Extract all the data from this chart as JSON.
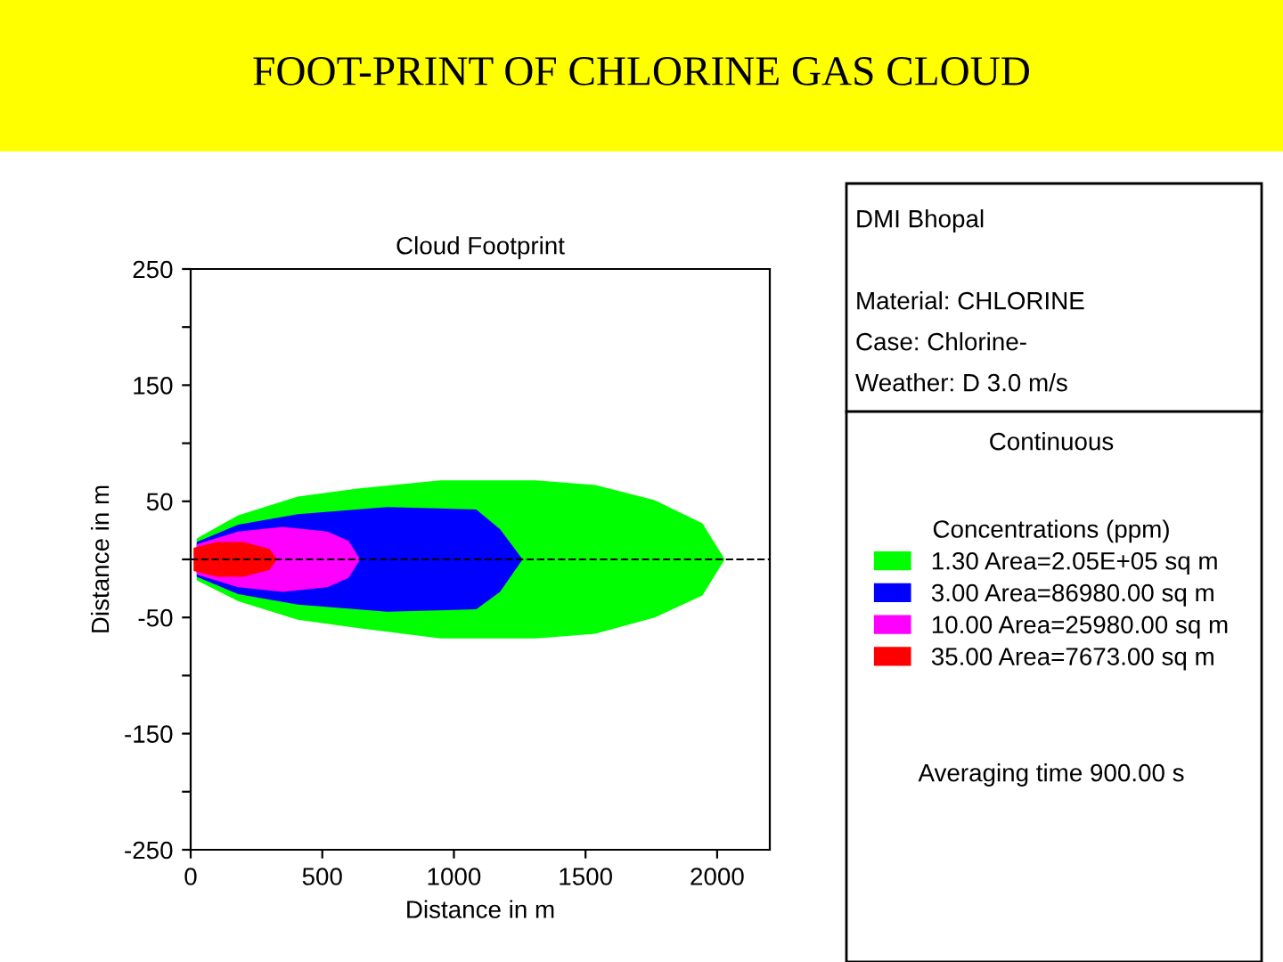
{
  "chart_data": {
    "type": "area",
    "title": "FOOT-PRINT OF CHLORINE GAS CLOUD",
    "subtitle": "Cloud Footprint",
    "xlabel": "Distance in m",
    "ylabel": "Distance in m",
    "legend_title": "Concentrations (ppm)",
    "annotations": [
      "DMI Bhopal",
      "Material: CHLORINE",
      "Case: Chlorine-",
      "Weather: D 3.0 m/s",
      "Continuous",
      "Averaging time 900.00 s"
    ],
    "series": [
      {
        "name": "1.30 Area=2.05E+05 sq m",
        "color": "#00ff00",
        "x": [
          23,
          181,
          407,
          633,
          949,
          1311,
          1537,
          1763,
          1944,
          2029
        ],
        "values": [
          18,
          38,
          54,
          61,
          68,
          68,
          64,
          51,
          31,
          0
        ]
      },
      {
        "color": "#00ff00",
        "x": [
          23,
          181,
          407,
          633,
          949,
          1311,
          1537,
          1763,
          1944,
          2029
        ],
        "values": [
          -18,
          -36,
          -52,
          -59,
          -68,
          -68,
          -64,
          -50,
          -31,
          0
        ]
      },
      {
        "name": "3.00 Area=86980.00 sq m",
        "color": "#0000ff",
        "x": [
          23,
          181,
          407,
          746,
          1085,
          1175,
          1261
        ],
        "values": [
          15,
          30,
          39,
          45,
          43,
          26,
          0
        ]
      },
      {
        "color": "#0000ff",
        "x": [
          23,
          181,
          407,
          746,
          1085,
          1175,
          1261
        ],
        "values": [
          -15,
          -30,
          -39,
          -45,
          -43,
          -28,
          0
        ]
      },
      {
        "name": "10.00 Area=25980.00 sq m",
        "color": "#ff00ff",
        "x": [
          23,
          181,
          350,
          520,
          600,
          644
        ],
        "values": [
          13,
          24,
          28,
          24,
          16,
          0
        ]
      },
      {
        "color": "#ff00ff",
        "x": [
          23,
          181,
          350,
          520,
          600,
          644
        ],
        "values": [
          -13,
          -24,
          -28,
          -24,
          -16,
          0
        ]
      },
      {
        "name": "35.00 Area=7673.00 sq m",
        "color": "#ff0000",
        "x": [
          11,
          100,
          200,
          300,
          328
        ],
        "values": [
          10,
          15,
          15,
          9,
          0
        ]
      },
      {
        "color": "#ff0000",
        "x": [
          11,
          100,
          200,
          300,
          328
        ],
        "values": [
          -10,
          -15,
          -15,
          -9,
          0
        ]
      }
    ],
    "xlim": [
      0,
      2200
    ],
    "ylim": [
      -250,
      250
    ],
    "xticks": [
      0,
      500,
      1000,
      1500,
      2000
    ],
    "yticks": [
      250,
      {
        "value": 200,
        "label": null
      },
      150,
      {
        "value": 100,
        "label": null
      },
      50,
      {
        "value": 0,
        "label": null
      },
      -50,
      {
        "value": -100,
        "label": null
      },
      -150,
      {
        "value": -200,
        "label": null
      },
      -250
    ],
    "ref_lines": [
      {
        "axis": "y",
        "value": 0,
        "color": "#000000",
        "line_style": "dashed"
      }
    ],
    "grid": false,
    "legend": "right"
  }
}
